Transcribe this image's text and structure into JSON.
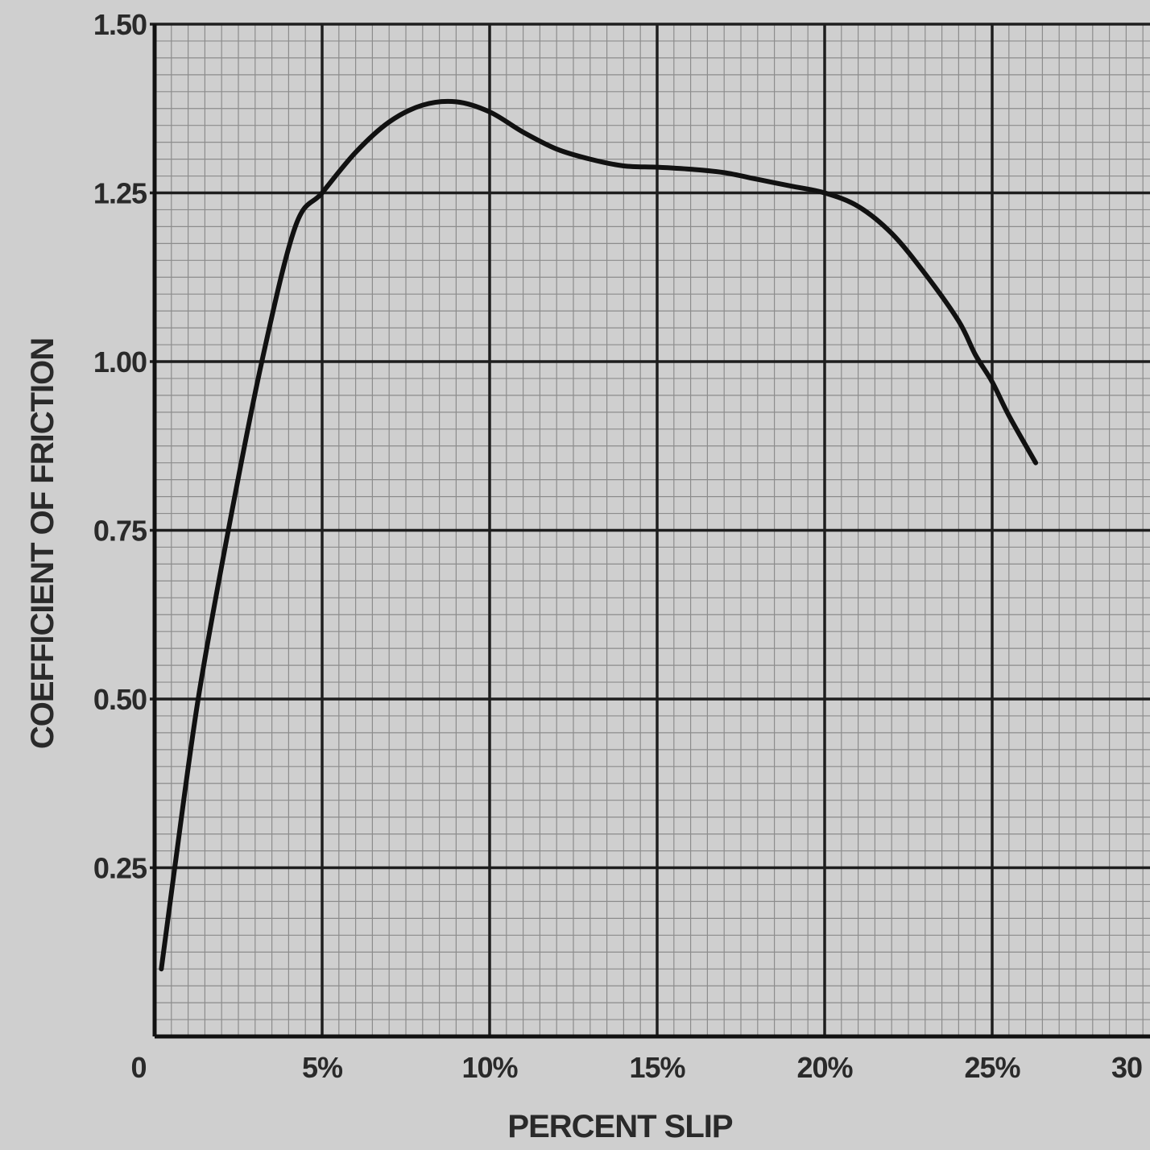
{
  "chart_data": {
    "type": "line",
    "title": "",
    "xlabel": "PERCENT SLIP",
    "ylabel": "COEFFICIENT OF FRICTION",
    "xlim": [
      0,
      30
    ],
    "ylim": [
      0,
      1.5
    ],
    "grid": true,
    "x_ticks": [
      {
        "value": 0,
        "label": "0"
      },
      {
        "value": 5,
        "label": "5%"
      },
      {
        "value": 10,
        "label": "10%"
      },
      {
        "value": 15,
        "label": "15%"
      },
      {
        "value": 20,
        "label": "20%"
      },
      {
        "value": 25,
        "label": "25%"
      },
      {
        "value": 30,
        "label": "30"
      }
    ],
    "y_ticks": [
      {
        "value": 0.25,
        "label": "0.25"
      },
      {
        "value": 0.5,
        "label": "0.50"
      },
      {
        "value": 0.75,
        "label": "0.75"
      },
      {
        "value": 1.0,
        "label": "1.00"
      },
      {
        "value": 1.25,
        "label": "1.25"
      },
      {
        "value": 1.5,
        "label": "1.50"
      }
    ],
    "series": [
      {
        "color": "#111111",
        "points": [
          [
            0.2,
            0.1
          ],
          [
            0.6,
            0.25
          ],
          [
            1.3,
            0.5
          ],
          [
            2.2,
            0.75
          ],
          [
            3.2,
            1.0
          ],
          [
            4.2,
            1.2
          ],
          [
            5.0,
            1.25
          ],
          [
            6.0,
            1.31
          ],
          [
            7.0,
            1.355
          ],
          [
            8.0,
            1.38
          ],
          [
            9.0,
            1.385
          ],
          [
            10.0,
            1.37
          ],
          [
            11.0,
            1.34
          ],
          [
            12.0,
            1.315
          ],
          [
            13.0,
            1.3
          ],
          [
            14.0,
            1.29
          ],
          [
            15.0,
            1.288
          ],
          [
            16.0,
            1.285
          ],
          [
            17.0,
            1.28
          ],
          [
            18.0,
            1.27
          ],
          [
            19.0,
            1.26
          ],
          [
            20.0,
            1.25
          ],
          [
            21.0,
            1.23
          ],
          [
            22.0,
            1.19
          ],
          [
            23.0,
            1.13
          ],
          [
            24.0,
            1.06
          ],
          [
            24.5,
            1.01
          ],
          [
            25.0,
            0.97
          ],
          [
            25.5,
            0.92
          ],
          [
            26.3,
            0.85
          ]
        ]
      }
    ]
  }
}
